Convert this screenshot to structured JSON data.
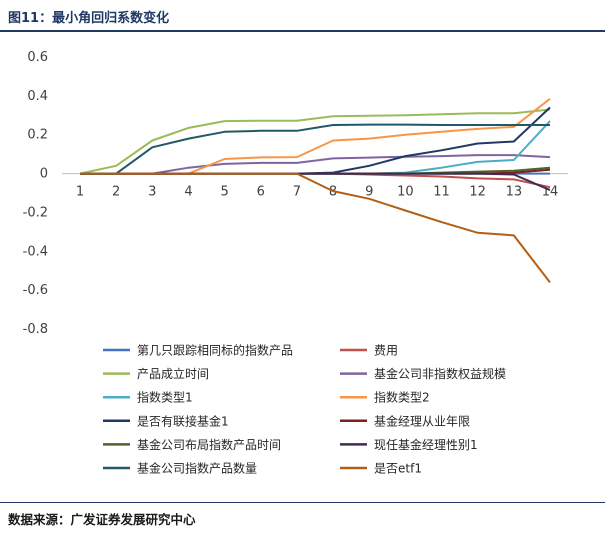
{
  "header": {
    "title": "图11：最小角回归系数变化"
  },
  "footer": {
    "source": "数据来源：广发证券发展研究中心"
  },
  "chart_data": {
    "type": "line",
    "title": "",
    "xlabel": "",
    "ylabel": "",
    "x": [
      "1",
      "2",
      "3",
      "4",
      "5",
      "6",
      "7",
      "8",
      "9",
      "10",
      "11",
      "12",
      "13",
      "14"
    ],
    "ylim": [
      -0.8,
      0.6
    ],
    "yticks": [
      "0.6",
      "0.4",
      "0.2",
      "0",
      "-0.2",
      "-0.4",
      "-0.6",
      "-0.8"
    ],
    "grid": false,
    "legend_position": "bottom",
    "series": [
      {
        "name": "第几只跟踪相同标的指数产品",
        "color": "#4472c4",
        "values": [
          0,
          0,
          0,
          0,
          0,
          0,
          0,
          0,
          0,
          0,
          0,
          0,
          0,
          0
        ]
      },
      {
        "name": "费用",
        "color": "#c0504d",
        "values": [
          0,
          0,
          0,
          0,
          0,
          0,
          0,
          0,
          -0.005,
          -0.01,
          -0.015,
          -0.025,
          -0.03,
          -0.07
        ]
      },
      {
        "name": "产品成立时间",
        "color": "#9bbb59",
        "values": [
          0,
          0.04,
          0.17,
          0.235,
          0.27,
          0.272,
          0.272,
          0.295,
          0.298,
          0.3,
          0.305,
          0.31,
          0.31,
          0.33
        ]
      },
      {
        "name": "基金公司非指数权益规模",
        "color": "#8064a2",
        "values": [
          0,
          0,
          0,
          0.03,
          0.05,
          0.055,
          0.055,
          0.078,
          0.082,
          0.087,
          0.09,
          0.095,
          0.095,
          0.085
        ]
      },
      {
        "name": "指数类型1",
        "color": "#4bacc6",
        "values": [
          0,
          0,
          0,
          0,
          0,
          0,
          0,
          0,
          0,
          0.005,
          0.03,
          0.06,
          0.07,
          0.27
        ]
      },
      {
        "name": "指数类型2",
        "color": "#f79646",
        "values": [
          0,
          0,
          0,
          0,
          0.075,
          0.083,
          0.085,
          0.17,
          0.18,
          0.2,
          0.215,
          0.23,
          0.24,
          0.385
        ]
      },
      {
        "name": "是否有联接基金1",
        "color": "#1f3864",
        "values": [
          0,
          0,
          0,
          0,
          0,
          0,
          0,
          0.005,
          0.04,
          0.09,
          0.12,
          0.155,
          0.165,
          0.34
        ]
      },
      {
        "name": "基金经理从业年限",
        "color": "#7f1f1f",
        "values": [
          0,
          0,
          0,
          0,
          0,
          0,
          0,
          0,
          0,
          0,
          0,
          0,
          0.005,
          0.02
        ]
      },
      {
        "name": "基金公司布局指数产品时间",
        "color": "#4f6228",
        "values": [
          0,
          0,
          0,
          0,
          0,
          0,
          0,
          0,
          0,
          0,
          0.005,
          0.01,
          0.015,
          0.03
        ]
      },
      {
        "name": "现任基金经理性别1",
        "color": "#3f2a56",
        "values": [
          0,
          0,
          0,
          0,
          0,
          0,
          0,
          0,
          0,
          0,
          0,
          0,
          -0.005,
          -0.085
        ]
      },
      {
        "name": "基金公司指数产品数量",
        "color": "#215968",
        "values": [
          0,
          0,
          0.135,
          0.18,
          0.215,
          0.22,
          0.22,
          0.25,
          0.252,
          0.252,
          0.25,
          0.25,
          0.25,
          0.25
        ]
      },
      {
        "name": "是否etf1",
        "color": "#b35e13",
        "values": [
          0,
          0,
          0,
          0,
          0,
          0,
          0,
          -0.09,
          -0.13,
          -0.19,
          -0.25,
          -0.305,
          -0.318,
          -0.56
        ]
      }
    ]
  }
}
